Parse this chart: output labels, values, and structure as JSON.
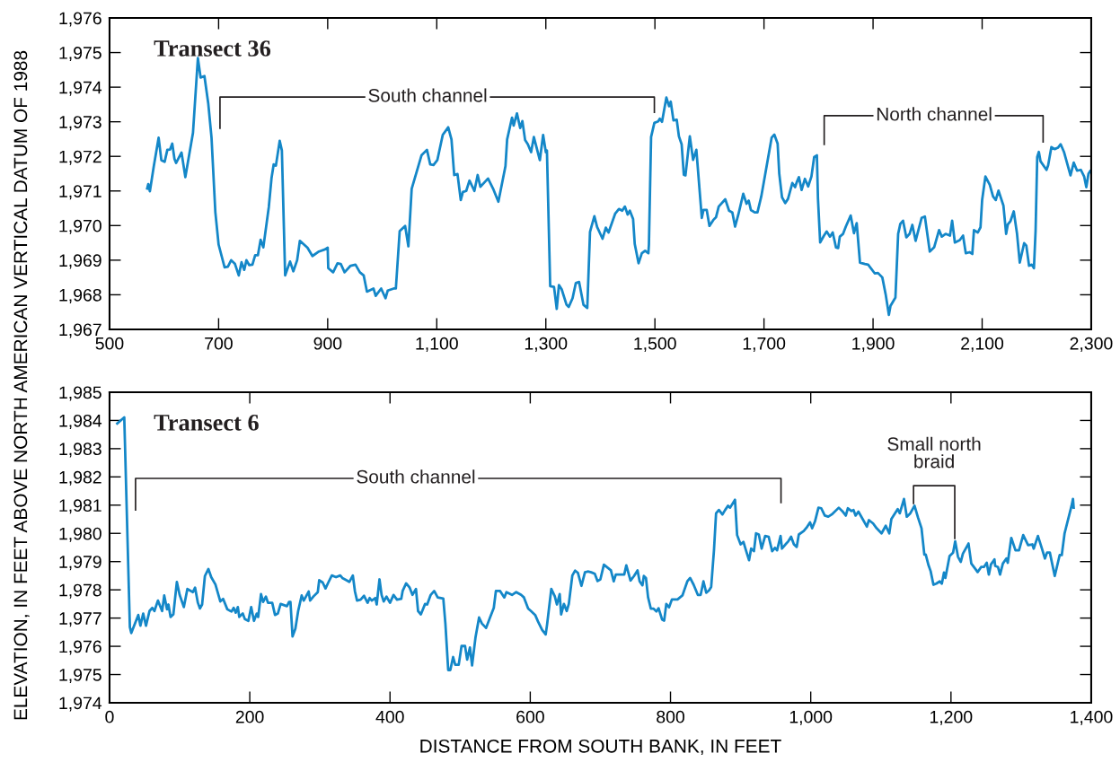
{
  "chart_data": [
    {
      "type": "line",
      "title": "Transect 36",
      "ylabel": "ELEVATION, IN FEET ABOVE NORTH AMERICAN VERTICAL DATUM OF 1988",
      "xlim": [
        500,
        2300
      ],
      "ylim": [
        1967,
        1976
      ],
      "xticks": [
        500,
        700,
        900,
        {
          "value": 1100,
          "label": "1,100"
        },
        {
          "value": 1300,
          "label": "1,300"
        },
        {
          "value": 1500,
          "label": "1,500"
        },
        {
          "value": 1700,
          "label": "1,700"
        },
        {
          "value": 1900,
          "label": "1,900"
        },
        {
          "value": 2100,
          "label": "2,100"
        },
        {
          "value": 2300,
          "label": "2,300"
        }
      ],
      "yticks": [
        {
          "value": 1967,
          "label": "1,967"
        },
        {
          "value": 1968,
          "label": "1,968"
        },
        {
          "value": 1969,
          "label": "1,969"
        },
        {
          "value": 1970,
          "label": "1,970"
        },
        {
          "value": 1971,
          "label": "1,971"
        },
        {
          "value": 1972,
          "label": "1,972"
        },
        {
          "value": 1973,
          "label": "1,973"
        },
        {
          "value": 1974,
          "label": "1,974"
        },
        {
          "value": 1975,
          "label": "1,975"
        },
        {
          "value": 1976,
          "label": "1,976"
        }
      ],
      "annotations": [
        "South channel",
        "North channel"
      ],
      "series": [
        {
          "color": "#1487c8",
          "x": [
            569,
            571,
            574,
            581,
            590,
            595,
            601,
            606,
            611,
            615,
            619,
            622,
            632,
            639,
            653,
            662,
            667,
            674,
            681,
            687,
            694,
            700,
            711,
            717,
            723,
            730,
            737,
            742,
            747,
            751,
            756,
            762,
            767,
            772,
            777,
            782,
            792,
            797,
            801,
            805,
            812,
            816,
            822,
            831,
            837,
            844,
            849,
            863,
            872,
            884,
            895,
            900,
            901,
            910,
            918,
            924,
            931,
            942,
            951,
            959,
            966,
            972,
            984,
            988,
            998,
            1006,
            1010,
            1021,
            1025,
            1032,
            1042,
            1048,
            1054,
            1072,
            1082,
            1088,
            1094,
            1101,
            1111,
            1121,
            1127,
            1132,
            1138,
            1144,
            1148,
            1154,
            1160,
            1169,
            1175,
            1180,
            1194,
            1204,
            1213,
            1226,
            1229,
            1238,
            1241,
            1247,
            1253,
            1257,
            1262,
            1267,
            1273,
            1278,
            1289,
            1295,
            1300,
            1302,
            1308,
            1315,
            1320,
            1324,
            1329,
            1338,
            1342,
            1349,
            1355,
            1361,
            1369,
            1376,
            1381,
            1389,
            1394,
            1404,
            1410,
            1415,
            1427,
            1434,
            1440,
            1445,
            1450,
            1454,
            1460,
            1463,
            1470,
            1476,
            1482,
            1488,
            1489,
            1493,
            1499,
            1506,
            1509,
            1513,
            1521,
            1526,
            1529,
            1534,
            1540,
            1544,
            1549,
            1553,
            1556,
            1564,
            1570,
            1576,
            1586,
            1589,
            1595,
            1600,
            1607,
            1612,
            1617,
            1629,
            1636,
            1642,
            1647,
            1653,
            1662,
            1668,
            1672,
            1676,
            1683,
            1688,
            1695,
            1703,
            1714,
            1719,
            1725,
            1728,
            1733,
            1739,
            1744,
            1752,
            1757,
            1760,
            1764,
            1769,
            1775,
            1781,
            1787,
            1792,
            1797,
            1799,
            1803,
            1810,
            1815,
            1821,
            1826,
            1832,
            1836,
            1839,
            1845,
            1850,
            1859,
            1865,
            1870,
            1876,
            1885,
            1891,
            1903,
            1909,
            1917,
            1923,
            1929,
            1932,
            1941,
            1946,
            1950,
            1955,
            1961,
            1967,
            1972,
            1978,
            1989,
            1995,
            2004,
            2012,
            2021,
            2026,
            2033,
            2041,
            2045,
            2050,
            2059,
            2065,
            2070,
            2077,
            2082,
            2085,
            2092,
            2097,
            2100,
            2106,
            2114,
            2120,
            2125,
            2130,
            2139,
            2144,
            2147,
            2152,
            2158,
            2164,
            2169,
            2177,
            2181,
            2186,
            2191,
            2195,
            2198,
            2201,
            2204,
            2207,
            2218,
            2221,
            2227,
            2233,
            2239,
            2244,
            2250,
            2262,
            2268,
            2274,
            2281,
            2287,
            2291,
            2295,
            2298
          ],
          "values": [
            1971.07,
            1971.2,
            1970.99,
            1971.7,
            1972.54,
            1971.89,
            1971.84,
            1972.19,
            1972.2,
            1972.37,
            1971.93,
            1971.81,
            1972.11,
            1971.4,
            1972.68,
            1974.84,
            1974.28,
            1974.32,
            1973.53,
            1972.54,
            1970.39,
            1969.45,
            1968.79,
            1968.81,
            1969.0,
            1968.89,
            1968.56,
            1968.94,
            1968.72,
            1969.0,
            1968.86,
            1968.87,
            1969.14,
            1969.14,
            1969.59,
            1969.37,
            1970.53,
            1971.37,
            1971.77,
            1971.73,
            1972.45,
            1972.17,
            1968.56,
            1968.96,
            1968.68,
            1969.0,
            1969.56,
            1969.36,
            1969.12,
            1969.25,
            1969.31,
            1969.36,
            1968.77,
            1968.65,
            1968.91,
            1968.89,
            1968.65,
            1968.84,
            1968.87,
            1968.65,
            1968.56,
            1968.09,
            1968.18,
            1967.97,
            1968.18,
            1967.9,
            1968.12,
            1968.18,
            1968.18,
            1969.84,
            1969.99,
            1969.4,
            1971.06,
            1972.03,
            1972.19,
            1971.77,
            1971.75,
            1971.89,
            1972.62,
            1972.84,
            1972.49,
            1971.46,
            1971.49,
            1970.74,
            1970.97,
            1971.0,
            1971.3,
            1971.0,
            1971.46,
            1971.12,
            1971.36,
            1971.04,
            1970.69,
            1971.72,
            1972.49,
            1973.12,
            1972.89,
            1973.24,
            1972.82,
            1973.02,
            1972.47,
            1972.35,
            1972.12,
            1972.56,
            1971.89,
            1972.62,
            1972.12,
            1972.17,
            1968.25,
            1968.23,
            1967.59,
            1968.28,
            1968.16,
            1967.71,
            1967.65,
            1967.9,
            1968.34,
            1968.37,
            1967.71,
            1967.62,
            1969.82,
            1970.27,
            1969.96,
            1969.62,
            1969.94,
            1969.8,
            1970.34,
            1970.48,
            1970.43,
            1970.55,
            1970.32,
            1970.43,
            1970.19,
            1969.47,
            1968.91,
            1969.2,
            1969.27,
            1969.2,
            1969.45,
            1972.56,
            1972.97,
            1973.01,
            1973.09,
            1973.0,
            1973.7,
            1973.45,
            1973.58,
            1973.04,
            1973.06,
            1972.58,
            1972.35,
            1971.47,
            1971.45,
            1972.58,
            1971.9,
            1972.19,
            1970.22,
            1970.45,
            1970.45,
            1969.99,
            1970.16,
            1970.24,
            1970.55,
            1970.76,
            1970.43,
            1970.38,
            1969.97,
            1970.32,
            1970.92,
            1970.63,
            1970.72,
            1970.45,
            1970.38,
            1970.38,
            1970.84,
            1971.55,
            1972.54,
            1972.63,
            1972.37,
            1971.5,
            1970.82,
            1970.65,
            1970.77,
            1971.23,
            1971.11,
            1971.25,
            1971.4,
            1971.03,
            1971.35,
            1971.13,
            1971.42,
            1971.98,
            1972.03,
            1970.77,
            1969.51,
            1969.71,
            1969.83,
            1969.68,
            1969.8,
            1969.37,
            1969.35,
            1969.68,
            1969.76,
            1969.97,
            1970.29,
            1969.78,
            1970.07,
            1968.93,
            1968.89,
            1968.87,
            1968.62,
            1968.63,
            1968.5,
            1968.02,
            1967.42,
            1967.68,
            1967.92,
            1969.76,
            1970.05,
            1970.14,
            1969.66,
            1969.76,
            1970.02,
            1969.56,
            1970.22,
            1970.26,
            1969.25,
            1969.37,
            1969.87,
            1969.68,
            1969.76,
            1969.71,
            1970.14,
            1969.51,
            1969.58,
            1969.71,
            1969.2,
            1969.23,
            1969.18,
            1969.87,
            1969.8,
            1969.95,
            1970.74,
            1971.42,
            1971.18,
            1970.84,
            1970.74,
            1971.01,
            1970.58,
            1969.76,
            1970.03,
            1970.13,
            1970.41,
            1969.76,
            1968.93,
            1969.49,
            1969.42,
            1968.84,
            1968.87,
            1968.77,
            1969.85,
            1971.98,
            1972.13,
            1971.86,
            1971.61,
            1971.74,
            1972.27,
            1972.21,
            1972.25,
            1972.35,
            1972.13,
            1971.45,
            1971.82,
            1971.59,
            1971.61,
            1971.42,
            1971.11,
            1971.5,
            1971.57
          ]
        }
      ]
    },
    {
      "type": "line",
      "title": "Transect 6",
      "xlabel": "DISTANCE FROM SOUTH BANK, IN FEET",
      "xlim": [
        0,
        1400
      ],
      "ylim": [
        1974,
        1985
      ],
      "xticks": [
        0,
        200,
        400,
        600,
        800,
        {
          "value": 1000,
          "label": "1,000"
        },
        {
          "value": 1200,
          "label": "1,200"
        },
        {
          "value": 1400,
          "label": "1,400"
        }
      ],
      "yticks": [
        {
          "value": 1974,
          "label": "1,974"
        },
        {
          "value": 1975,
          "label": "1,975"
        },
        {
          "value": 1976,
          "label": "1,976"
        },
        {
          "value": 1977,
          "label": "1,977"
        },
        {
          "value": 1978,
          "label": "1,978"
        },
        {
          "value": 1979,
          "label": "1,979"
        },
        {
          "value": 1980,
          "label": "1,980"
        },
        {
          "value": 1981,
          "label": "1,981"
        },
        {
          "value": 1982,
          "label": "1,982"
        },
        {
          "value": 1983,
          "label": "1,983"
        },
        {
          "value": 1984,
          "label": "1,984"
        },
        {
          "value": 1985,
          "label": "1,985"
        }
      ],
      "annotations": [
        "South channel",
        "Small north\nbraid"
      ],
      "series": [
        {
          "color": "#1487c8",
          "x": [
            11,
            21,
            29,
            31,
            41,
            44,
            48,
            52,
            57,
            61,
            64,
            69,
            75,
            78,
            82,
            84,
            87,
            91,
            96,
            100,
            106,
            111,
            119,
            122,
            126,
            129,
            132,
            136,
            141,
            145,
            151,
            158,
            162,
            168,
            174,
            177,
            180,
            183,
            185,
            190,
            193,
            198,
            202,
            206,
            210,
            212,
            216,
            219,
            223,
            226,
            232,
            236,
            240,
            244,
            253,
            256,
            258,
            261,
            265,
            269,
            274,
            277,
            281,
            284,
            286,
            291,
            297,
            299,
            304,
            308,
            312,
            317,
            323,
            329,
            332,
            338,
            342,
            347,
            350,
            353,
            358,
            363,
            368,
            371,
            374,
            379,
            381,
            385,
            388,
            391,
            395,
            400,
            405,
            410,
            416,
            418,
            423,
            428,
            432,
            437,
            440,
            444,
            450,
            453,
            458,
            463,
            468,
            476,
            479,
            483,
            486,
            490,
            493,
            498,
            502,
            507,
            510,
            514,
            517,
            522,
            527,
            531,
            537,
            543,
            548,
            551,
            557,
            563,
            566,
            574,
            580,
            587,
            591,
            597,
            601,
            607,
            611,
            617,
            622,
            624,
            630,
            635,
            638,
            642,
            644,
            648,
            652,
            655,
            660,
            664,
            668,
            673,
            678,
            682,
            687,
            692,
            696,
            700,
            705,
            715,
            719,
            722,
            734,
            737,
            743,
            748,
            753,
            756,
            760,
            762,
            765,
            768,
            772,
            776,
            780,
            783,
            788,
            791,
            794,
            798,
            802,
            810,
            817,
            824,
            828,
            833,
            839,
            843,
            847,
            851,
            855,
            858,
            862,
            865,
            869,
            874,
            878,
            882,
            885,
            892,
            895,
            900,
            904,
            908,
            912,
            915,
            919,
            922,
            926,
            930,
            935,
            940,
            945,
            949,
            952,
            957,
            959,
            964,
            968,
            972,
            976,
            980,
            983,
            990,
            994,
            999,
            1002,
            1006,
            1011,
            1015,
            1020,
            1025,
            1030,
            1040,
            1045,
            1050,
            1053,
            1058,
            1061,
            1064,
            1068,
            1074,
            1080,
            1083,
            1089,
            1094,
            1101,
            1107,
            1112,
            1115,
            1124,
            1127,
            1133,
            1137,
            1142,
            1148,
            1153,
            1158,
            1162,
            1164,
            1168,
            1171,
            1175,
            1179,
            1184,
            1187,
            1190,
            1192,
            1198,
            1203,
            1206,
            1210,
            1214,
            1217,
            1225,
            1229,
            1235,
            1238,
            1243,
            1247,
            1251,
            1254,
            1257,
            1262,
            1263,
            1267,
            1270,
            1274,
            1279,
            1281,
            1286,
            1292,
            1297,
            1303,
            1310,
            1316,
            1318,
            1324,
            1329,
            1334,
            1337,
            1341,
            1348,
            1355,
            1358,
            1362,
            1372,
            1374,
            1375
          ],
          "values": [
            1983.89,
            1984.11,
            1976.68,
            1976.47,
            1977.11,
            1976.73,
            1977.16,
            1976.73,
            1977.25,
            1977.36,
            1977.25,
            1977.62,
            1977.25,
            1977.8,
            1977.31,
            1977.48,
            1977.04,
            1977.13,
            1978.28,
            1977.82,
            1977.39,
            1978.03,
            1977.92,
            1978.08,
            1977.54,
            1977.34,
            1977.48,
            1978.49,
            1978.74,
            1978.45,
            1978.19,
            1977.59,
            1977.68,
            1977.31,
            1977.23,
            1977.36,
            1977.19,
            1977.39,
            1977.04,
            1977.16,
            1976.96,
            1976.9,
            1977.39,
            1976.9,
            1977.16,
            1977.04,
            1977.85,
            1977.57,
            1977.76,
            1977.54,
            1977.54,
            1977.11,
            1977.16,
            1977.5,
            1977.42,
            1977.57,
            1977.57,
            1976.35,
            1976.62,
            1977.25,
            1977.8,
            1977.62,
            1977.8,
            1977.94,
            1977.62,
            1977.77,
            1977.92,
            1978.34,
            1978.26,
            1978.05,
            1978.26,
            1978.51,
            1978.45,
            1978.51,
            1978.42,
            1978.34,
            1978.28,
            1978.51,
            1977.94,
            1977.62,
            1977.65,
            1977.79,
            1977.54,
            1977.71,
            1977.62,
            1977.71,
            1977.48,
            1978.37,
            1977.82,
            1977.59,
            1977.76,
            1977.54,
            1977.82,
            1977.65,
            1977.68,
            1977.96,
            1978.23,
            1978.08,
            1977.82,
            1978.03,
            1977.25,
            1977.13,
            1977.5,
            1977.48,
            1977.82,
            1977.96,
            1977.73,
            1977.69,
            1976.79,
            1975.16,
            1975.16,
            1975.62,
            1975.35,
            1975.35,
            1976.01,
            1976.01,
            1975.53,
            1975.96,
            1975.32,
            1976.33,
            1977.02,
            1976.81,
            1976.65,
            1977.04,
            1977.36,
            1977.96,
            1977.96,
            1977.73,
            1977.92,
            1977.82,
            1977.92,
            1977.82,
            1977.73,
            1977.34,
            1977.25,
            1977.11,
            1976.88,
            1976.58,
            1976.42,
            1976.77,
            1978.03,
            1977.77,
            1977.48,
            1977.85,
            1977.13,
            1977.5,
            1977.25,
            1977.5,
            1978.51,
            1978.68,
            1978.6,
            1978.14,
            1978.62,
            1978.65,
            1978.62,
            1978.57,
            1978.31,
            1978.37,
            1978.89,
            1978.69,
            1978.3,
            1978.54,
            1978.54,
            1978.87,
            1978.33,
            1978.49,
            1978.69,
            1978.3,
            1978.16,
            1978.49,
            1978.42,
            1977.74,
            1977.33,
            1977.33,
            1977.23,
            1977.35,
            1976.95,
            1976.91,
            1977.5,
            1977.38,
            1977.66,
            1977.66,
            1977.8,
            1978.3,
            1978.42,
            1978.18,
            1977.82,
            1977.82,
            1978.3,
            1977.9,
            1977.98,
            1978.1,
            1979.4,
            1980.71,
            1980.83,
            1980.67,
            1980.83,
            1980.98,
            1980.91,
            1981.19,
            1979.94,
            1979.61,
            1979.7,
            1979.37,
            1979.05,
            1979.46,
            1979.37,
            1980.0,
            1979.96,
            1979.46,
            1979.91,
            1979.88,
            1979.37,
            1979.49,
            1979.4,
            1979.91,
            1979.46,
            1979.61,
            1979.72,
            1979.88,
            1979.61,
            1979.52,
            1979.96,
            1980.08,
            1980.2,
            1980.39,
            1980.18,
            1980.42,
            1980.91,
            1980.89,
            1980.63,
            1980.59,
            1980.67,
            1980.91,
            1980.79,
            1980.63,
            1980.89,
            1980.79,
            1980.83,
            1980.63,
            1980.77,
            1980.51,
            1980.24,
            1980.47,
            1980.35,
            1980.18,
            1980.0,
            1980.27,
            1980.0,
            1980.51,
            1980.86,
            1980.71,
            1981.22,
            1980.59,
            1980.71,
            1980.98,
            1980.56,
            1980.18,
            1979.25,
            1979.25,
            1978.87,
            1978.66,
            1978.18,
            1978.22,
            1978.3,
            1978.22,
            1978.61,
            1978.42,
            1979.2,
            1979.32,
            1979.72,
            1979.17,
            1978.99,
            1979.28,
            1979.64,
            1978.93,
            1978.73,
            1978.63,
            1978.81,
            1978.81,
            1978.96,
            1978.54,
            1978.9,
            1979.08,
            1978.85,
            1978.81,
            1978.54,
            1978.93,
            1979.11,
            1978.96,
            1979.84,
            1979.4,
            1979.4,
            1979.94,
            1979.58,
            1979.61,
            1979.46,
            1979.91,
            1979.52,
            1979.11,
            1979.32,
            1979.32,
            1978.49,
            1979.23,
            1979.23,
            1980.0,
            1980.98,
            1981.22,
            1980.91
          ]
        }
      ]
    }
  ]
}
